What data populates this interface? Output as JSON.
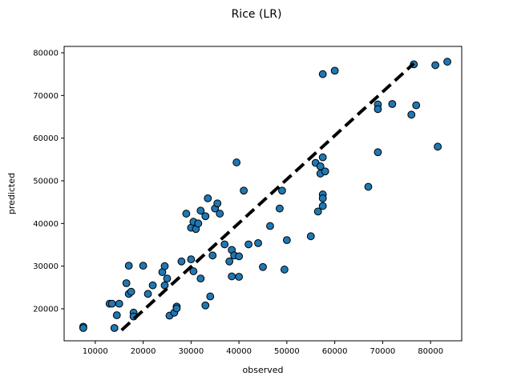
{
  "chart_data": {
    "type": "scatter",
    "title": "Rice (LR)",
    "xlabel": "observed",
    "ylabel": "predicted",
    "xlim": [
      3500,
      86500
    ],
    "ylim": [
      12500,
      81500
    ],
    "xticks": [
      10000,
      20000,
      30000,
      40000,
      50000,
      60000,
      70000,
      80000
    ],
    "yticks": [
      20000,
      30000,
      40000,
      50000,
      60000,
      70000,
      80000
    ],
    "grid": false,
    "legend": "none",
    "point_color": "#1f77b4",
    "point_edge_color": "#000000",
    "line_color": "#000000",
    "fit_line": {
      "x": [
        15500,
        76500
      ],
      "y": [
        15000,
        77500
      ]
    },
    "points": [
      [
        7500,
        15800
      ],
      [
        7500,
        15500
      ],
      [
        13000,
        21200
      ],
      [
        13500,
        21200
      ],
      [
        14000,
        15500
      ],
      [
        14500,
        18500
      ],
      [
        15000,
        21200
      ],
      [
        16500,
        26000
      ],
      [
        17000,
        30100
      ],
      [
        17000,
        23500
      ],
      [
        17500,
        24000
      ],
      [
        18000,
        19100
      ],
      [
        18000,
        18200
      ],
      [
        20000,
        30100
      ],
      [
        21000,
        23500
      ],
      [
        22000,
        25500
      ],
      [
        24000,
        28600
      ],
      [
        24500,
        30000
      ],
      [
        24500,
        25500
      ],
      [
        25000,
        27100
      ],
      [
        25500,
        18400
      ],
      [
        26500,
        19100
      ],
      [
        27000,
        20500
      ],
      [
        27000,
        20100
      ],
      [
        28000,
        31100
      ],
      [
        29000,
        42300
      ],
      [
        30000,
        39000
      ],
      [
        30000,
        31600
      ],
      [
        30500,
        40400
      ],
      [
        30500,
        28800
      ],
      [
        31000,
        38700
      ],
      [
        31500,
        40000
      ],
      [
        32000,
        43000
      ],
      [
        32000,
        27100
      ],
      [
        33000,
        41700
      ],
      [
        33000,
        20800
      ],
      [
        33500,
        45900
      ],
      [
        34000,
        22900
      ],
      [
        34500,
        32500
      ],
      [
        35000,
        43500
      ],
      [
        35500,
        44700
      ],
      [
        36000,
        42300
      ],
      [
        37000,
        35100
      ],
      [
        38000,
        31100
      ],
      [
        38500,
        33800
      ],
      [
        38500,
        27600
      ],
      [
        39000,
        32500
      ],
      [
        39500,
        54300
      ],
      [
        40000,
        32300
      ],
      [
        40000,
        27500
      ],
      [
        41000,
        47700
      ],
      [
        42000,
        35100
      ],
      [
        44000,
        35400
      ],
      [
        45000,
        29800
      ],
      [
        46500,
        39400
      ],
      [
        48500,
        43500
      ],
      [
        49000,
        47700
      ],
      [
        49500,
        29200
      ],
      [
        50000,
        36100
      ],
      [
        55000,
        37000
      ],
      [
        56000,
        54200
      ],
      [
        56500,
        42800
      ],
      [
        57000,
        51700
      ],
      [
        57000,
        53400
      ],
      [
        57500,
        55500
      ],
      [
        57500,
        46800
      ],
      [
        57500,
        45900
      ],
      [
        57500,
        44100
      ],
      [
        58000,
        52200
      ],
      [
        57500,
        75000
      ],
      [
        60000,
        75800
      ],
      [
        67000,
        48600
      ],
      [
        69000,
        67900
      ],
      [
        69000,
        66800
      ],
      [
        69000,
        56700
      ],
      [
        72000,
        68000
      ],
      [
        76000,
        65500
      ],
      [
        76500,
        77300
      ],
      [
        77000,
        67700
      ],
      [
        81000,
        77100
      ],
      [
        81500,
        58000
      ],
      [
        83500,
        77900
      ]
    ]
  }
}
